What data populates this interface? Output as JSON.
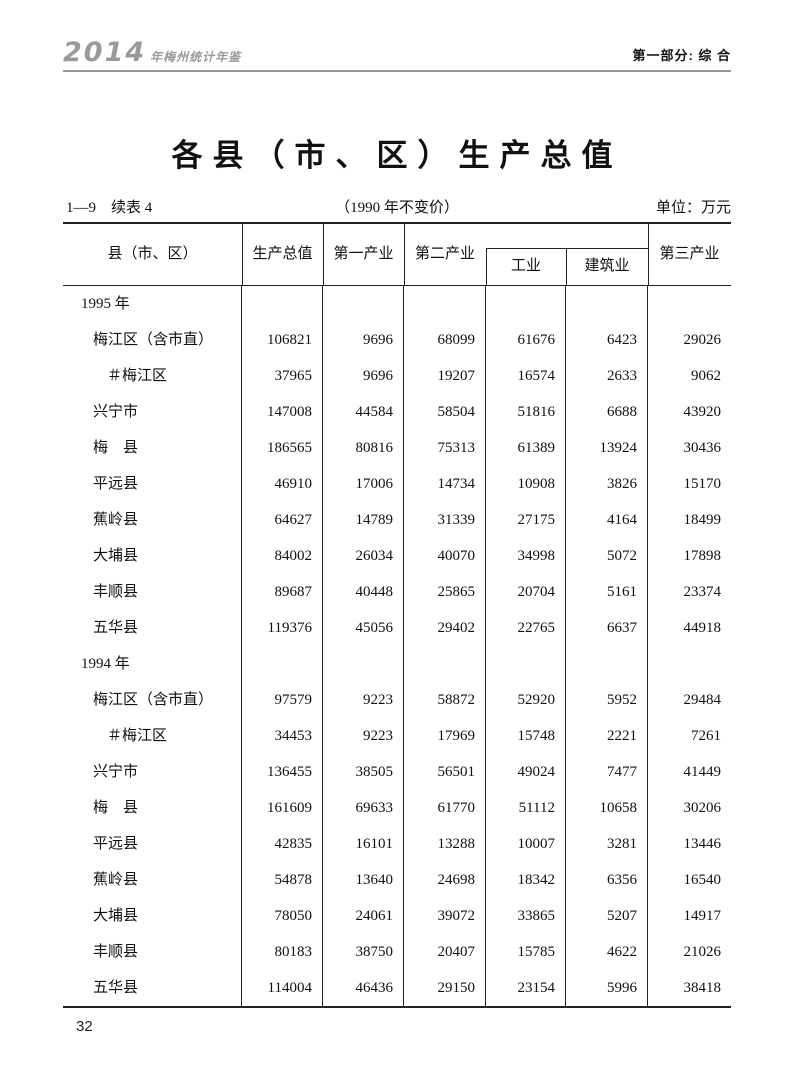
{
  "page": {
    "running_header": {
      "logo_year": "2014",
      "logo_name": "年梅州统计年鉴",
      "section": "第一部分: 综 合"
    },
    "title": "各县（市、区）生产总值",
    "meta": {
      "table_no": "1—9　续表 4",
      "price_note": "（1990 年不变价）",
      "unit": "单位：万元"
    },
    "page_number": "32"
  },
  "table": {
    "columns": [
      "县（市、区）",
      "生产总值",
      "第一产业",
      "第二产业",
      "工业",
      "建筑业",
      "第三产业"
    ],
    "rows": [
      {
        "type": "year",
        "indent": 0,
        "label": "1995 年"
      },
      {
        "type": "data",
        "indent": 1,
        "label": "梅江区（含市直）",
        "values": [
          "106821",
          "9696",
          "68099",
          "61676",
          "6423",
          "29026"
        ]
      },
      {
        "type": "data",
        "indent": 2,
        "label": "＃梅江区",
        "values": [
          "37965",
          "9696",
          "19207",
          "16574",
          "2633",
          "9062"
        ]
      },
      {
        "type": "data",
        "indent": 1,
        "label": "兴宁市",
        "values": [
          "147008",
          "44584",
          "58504",
          "51816",
          "6688",
          "43920"
        ]
      },
      {
        "type": "data",
        "indent": 1,
        "label": "梅　县",
        "values": [
          "186565",
          "80816",
          "75313",
          "61389",
          "13924",
          "30436"
        ]
      },
      {
        "type": "data",
        "indent": 1,
        "label": "平远县",
        "values": [
          "46910",
          "17006",
          "14734",
          "10908",
          "3826",
          "15170"
        ]
      },
      {
        "type": "data",
        "indent": 1,
        "label": "蕉岭县",
        "values": [
          "64627",
          "14789",
          "31339",
          "27175",
          "4164",
          "18499"
        ]
      },
      {
        "type": "data",
        "indent": 1,
        "label": "大埔县",
        "values": [
          "84002",
          "26034",
          "40070",
          "34998",
          "5072",
          "17898"
        ]
      },
      {
        "type": "data",
        "indent": 1,
        "label": "丰顺县",
        "values": [
          "89687",
          "40448",
          "25865",
          "20704",
          "5161",
          "23374"
        ]
      },
      {
        "type": "data",
        "indent": 1,
        "label": "五华县",
        "values": [
          "119376",
          "45056",
          "29402",
          "22765",
          "6637",
          "44918"
        ]
      },
      {
        "type": "year",
        "indent": 0,
        "label": "1994 年"
      },
      {
        "type": "data",
        "indent": 1,
        "label": "梅江区（含市直）",
        "values": [
          "97579",
          "9223",
          "58872",
          "52920",
          "5952",
          "29484"
        ]
      },
      {
        "type": "data",
        "indent": 2,
        "label": "＃梅江区",
        "values": [
          "34453",
          "9223",
          "17969",
          "15748",
          "2221",
          "7261"
        ]
      },
      {
        "type": "data",
        "indent": 1,
        "label": "兴宁市",
        "values": [
          "136455",
          "38505",
          "56501",
          "49024",
          "7477",
          "41449"
        ]
      },
      {
        "type": "data",
        "indent": 1,
        "label": "梅　县",
        "values": [
          "161609",
          "69633",
          "61770",
          "51112",
          "10658",
          "30206"
        ]
      },
      {
        "type": "data",
        "indent": 1,
        "label": "平远县",
        "values": [
          "42835",
          "16101",
          "13288",
          "10007",
          "3281",
          "13446"
        ]
      },
      {
        "type": "data",
        "indent": 1,
        "label": "蕉岭县",
        "values": [
          "54878",
          "13640",
          "24698",
          "18342",
          "6356",
          "16540"
        ]
      },
      {
        "type": "data",
        "indent": 1,
        "label": "大埔县",
        "values": [
          "78050",
          "24061",
          "39072",
          "33865",
          "5207",
          "14917"
        ]
      },
      {
        "type": "data",
        "indent": 1,
        "label": "丰顺县",
        "values": [
          "80183",
          "38750",
          "20407",
          "15785",
          "4622",
          "21026"
        ]
      },
      {
        "type": "data",
        "indent": 1,
        "label": "五华县",
        "values": [
          "114004",
          "46436",
          "29150",
          "23154",
          "5996",
          "38418"
        ]
      }
    ]
  },
  "colors": {
    "logo_gray": "#9a9a9a",
    "rule_gray": "#9a9a9a",
    "table_line": "#222222",
    "text": "#111111"
  }
}
